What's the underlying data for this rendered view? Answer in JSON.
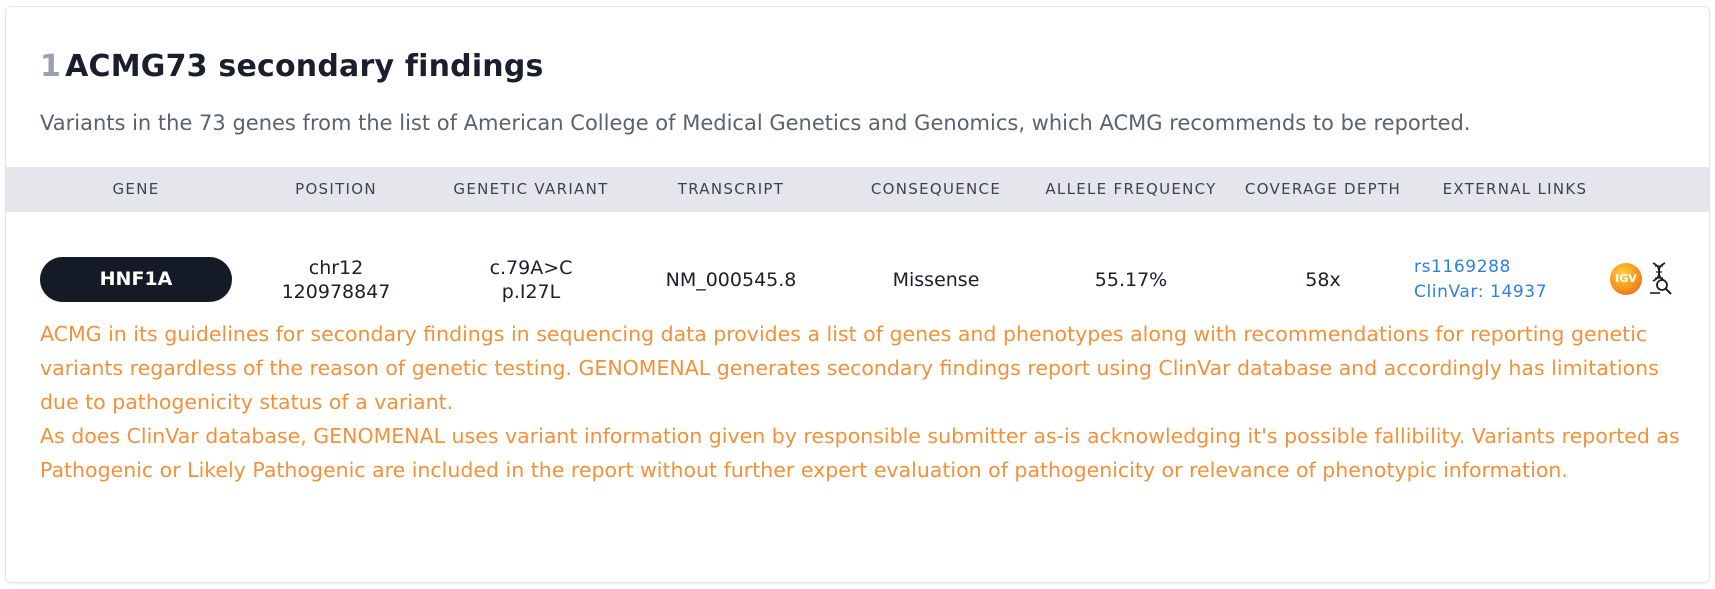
{
  "section": {
    "number": "1",
    "title": "ACMG73 secondary findings",
    "description": "Variants in the 73 genes from the list of American College of Medical Genetics and Genomics, which ACMG recommends to be reported."
  },
  "table": {
    "headers": [
      "GENE",
      "POSITION",
      "GENETIC VARIANT",
      "TRANSCRIPT",
      "CONSEQUENCE",
      "ALLELE FREQUENCY",
      "COVERAGE DEPTH",
      "EXTERNAL LINKS"
    ],
    "rows": [
      {
        "gene": "HNF1A",
        "position_chr": "chr12",
        "position_coord": "120978847",
        "variant_c": "c.79A>C",
        "variant_p": "p.I27L",
        "transcript": "NM_000545.8",
        "consequence": "Missense",
        "allele_frequency": "55.17%",
        "coverage_depth": "58x",
        "links": {
          "dbsnp": "rs1169288",
          "clinvar": "ClinVar: 14937",
          "igv_icon": "igv-icon",
          "dna_search_icon": "dna-search-icon"
        }
      }
    ]
  },
  "notes": [
    "ACMG in its guidelines for secondary findings in sequencing data provides a list of genes and phenotypes along with recommendations for reporting genetic variants regardless of the reason of genetic testing. GENOMENAL generates secondary findings report using ClinVar database and accordingly has limitations due to pathogenicity status of a variant.",
    "As does ClinVar database, GENOMENAL uses variant information given by responsible submitter as-is acknowledging it's possible fallibility. Variants reported as Pathogenic or Likely Pathogenic are included in the report without further expert evaluation of pathogenicity or relevance of phenotypic information."
  ],
  "colors": {
    "note_text": "#f3913a",
    "link": "#2f7fe0",
    "gene_pill": "#141b26",
    "header_bg": "#e4e6eb"
  }
}
